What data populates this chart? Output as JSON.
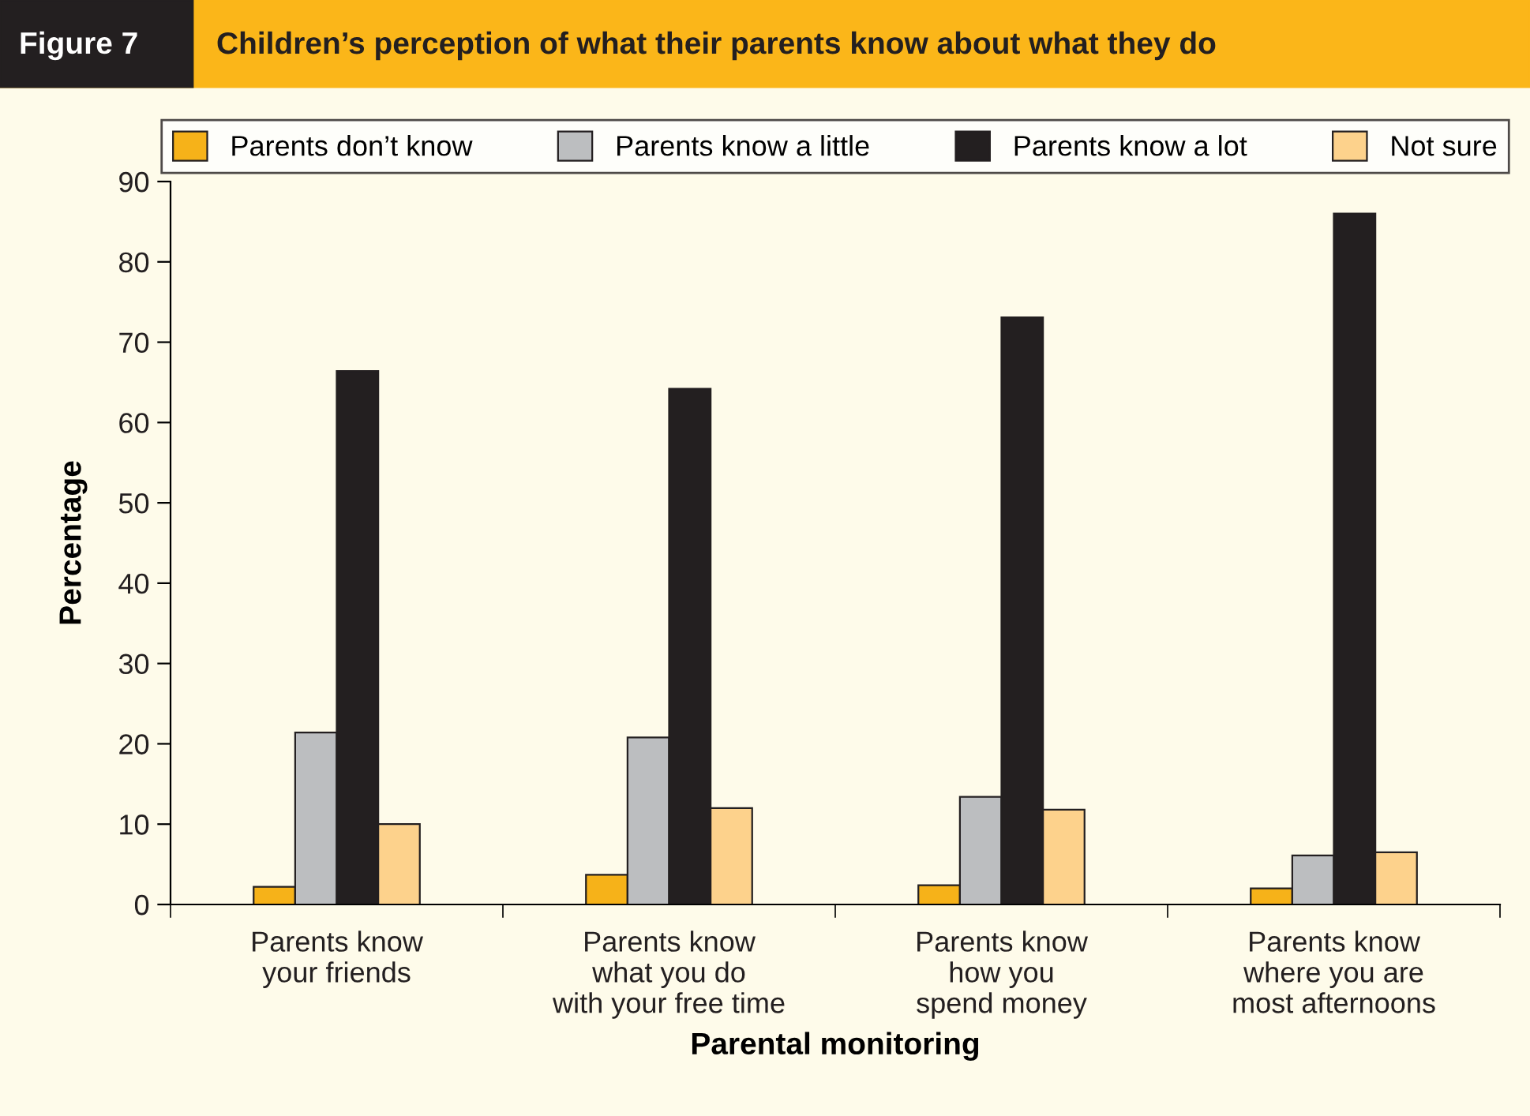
{
  "chart_data": {
    "type": "bar",
    "title": "Children’s perception of what their parents know about what they do",
    "annotations": [
      "Figure 7"
    ],
    "xlabel": "Parental monitoring",
    "ylabel": "Percentage",
    "categories": [
      "Parents know\nyour friends",
      "Parents know\nwhat you do\nwith your free time",
      "Parents know\nhow you\nspend money",
      "Parents know\nwhere you are\nmost afternoons"
    ],
    "series": [
      {
        "name": "Parents don’t know",
        "color": "#f6b219",
        "values": [
          2.2,
          3.7,
          2.4,
          2.0
        ]
      },
      {
        "name": "Parents know a little",
        "color": "#bcbec0",
        "values": [
          21.4,
          20.8,
          13.4,
          6.1
        ]
      },
      {
        "name": "Parents know a lot",
        "color": "#231f20",
        "values": [
          66.4,
          64.2,
          73.1,
          86.0
        ]
      },
      {
        "name": "Not sure",
        "color": "#fdd28c",
        "values": [
          10.0,
          12.0,
          11.8,
          6.5
        ]
      }
    ],
    "ylim": [
      0,
      90
    ],
    "yticks": [
      0,
      10,
      20,
      30,
      40,
      50,
      60,
      70,
      80,
      90
    ],
    "grid": false,
    "legend": "top"
  }
}
